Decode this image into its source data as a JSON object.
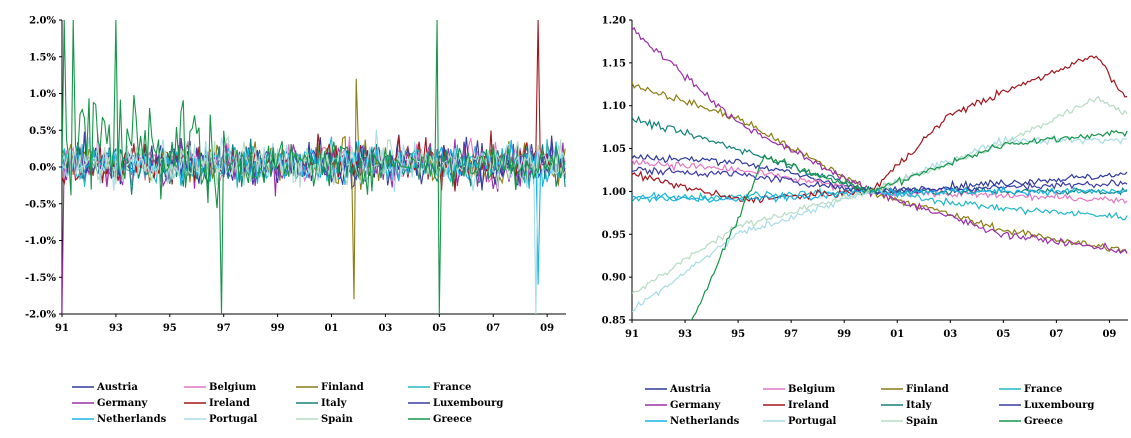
{
  "chart_data": [
    {
      "type": "line",
      "title": "",
      "xlabel": "",
      "ylabel": "",
      "xlim": [
        1991,
        2009.7
      ],
      "ylim": [
        -2.0,
        2.0
      ],
      "y_unit": "%",
      "x_tick_labels": [
        "91",
        "93",
        "95",
        "97",
        "99",
        "01",
        "03",
        "05",
        "07",
        "09"
      ],
      "y_tick_labels": [
        "2.0%",
        "1.5%",
        "1.0%",
        "0.5%",
        "0.0%",
        "-0.5%",
        "-1.0%",
        "-1.5%",
        "-2.0%"
      ],
      "grid": false,
      "legend": "bottom",
      "series": [
        {
          "name": "Austria",
          "color": "#2f3a9c",
          "values": []
        },
        {
          "name": "Belgium",
          "color": "#e377c2",
          "values": []
        },
        {
          "name": "Finland",
          "color": "#8c7d14",
          "values": []
        },
        {
          "name": "France",
          "color": "#20b8c8",
          "values": []
        },
        {
          "name": "Germany",
          "color": "#9b30a8",
          "values": []
        },
        {
          "name": "Ireland",
          "color": "#a3151c",
          "values": []
        },
        {
          "name": "Italy",
          "color": "#12807a",
          "values": []
        },
        {
          "name": "Luxembourg",
          "color": "#3a3aa8",
          "values": []
        },
        {
          "name": "Netherlands",
          "color": "#18b4e6",
          "values": []
        },
        {
          "name": "Portugal",
          "color": "#a8dce8",
          "values": []
        },
        {
          "name": "Spain",
          "color": "#b7dcc4",
          "values": []
        },
        {
          "name": "Greece",
          "color": "#17954a",
          "values": []
        }
      ],
      "spikes": [
        {
          "series": "Greece",
          "x": 1991.1,
          "y": 2.0
        },
        {
          "series": "Greece",
          "x": 1991.4,
          "y": 2.0
        },
        {
          "series": "Greece",
          "x": 1993.0,
          "y": 2.0
        },
        {
          "series": "Greece",
          "x": 1996.9,
          "y": -2.0
        },
        {
          "series": "Greece",
          "x": 2004.9,
          "y": 2.0
        },
        {
          "series": "Greece",
          "x": 2005.0,
          "y": -2.0
        },
        {
          "series": "Finland",
          "x": 2001.9,
          "y": 1.2
        },
        {
          "series": "Finland",
          "x": 2001.8,
          "y": -1.8
        },
        {
          "series": "Ireland",
          "x": 2008.7,
          "y": 2.0
        },
        {
          "series": "Germany",
          "x": 1991.0,
          "y": -2.0
        },
        {
          "series": "Portugal",
          "x": 2008.6,
          "y": -2.0
        },
        {
          "series": "Netherlands",
          "x": 2008.7,
          "y": -1.6
        }
      ]
    },
    {
      "type": "line",
      "title": "",
      "xlabel": "",
      "ylabel": "",
      "xlim": [
        1991,
        2009.7
      ],
      "ylim": [
        0.85,
        1.2
      ],
      "x_tick_labels": [
        "91",
        "93",
        "95",
        "97",
        "99",
        "01",
        "03",
        "05",
        "07",
        "09"
      ],
      "y_tick_labels": [
        "1.20",
        "1.15",
        "1.10",
        "1.05",
        "1.00",
        "0.95",
        "0.90",
        "0.85"
      ],
      "grid": false,
      "legend": "bottom",
      "index_base_year": 2000,
      "series": [
        {
          "name": "Austria",
          "color": "#2f3a9c",
          "x": [
            1991,
            1995,
            2000,
            2005,
            2009.7
          ],
          "values": [
            1.04,
            1.035,
            1.0,
            1.01,
            1.02
          ]
        },
        {
          "name": "Belgium",
          "color": "#e377c2",
          "x": [
            1991,
            1995,
            2000,
            2005,
            2009.7
          ],
          "values": [
            1.035,
            1.025,
            1.0,
            0.995,
            0.99
          ]
        },
        {
          "name": "Finland",
          "color": "#8c7d14",
          "x": [
            1991,
            1995,
            2000,
            2005,
            2009.7
          ],
          "values": [
            1.125,
            1.085,
            1.0,
            0.955,
            0.93
          ]
        },
        {
          "name": "France",
          "color": "#20b8c8",
          "x": [
            1991,
            1995,
            2000,
            2005,
            2009.7
          ],
          "values": [
            0.99,
            0.995,
            1.0,
            0.98,
            0.97
          ]
        },
        {
          "name": "Germany",
          "color": "#9b30a8",
          "x": [
            1991,
            1995,
            2000,
            2005,
            2009.7
          ],
          "values": [
            1.19,
            1.08,
            1.0,
            0.95,
            0.93
          ]
        },
        {
          "name": "Ireland",
          "color": "#a3151c",
          "x": [
            1991,
            1995,
            2000,
            2003,
            2008.5,
            2009.7
          ],
          "values": [
            1.02,
            0.99,
            1.0,
            1.09,
            1.16,
            1.105
          ]
        },
        {
          "name": "Italy",
          "color": "#12807a",
          "x": [
            1991,
            1995,
            2000,
            2005,
            2009.7
          ],
          "values": [
            1.085,
            1.05,
            1.0,
            1.0,
            1.0
          ]
        },
        {
          "name": "Luxembourg",
          "color": "#3a3aa8",
          "x": [
            1991,
            1995,
            2000,
            2005,
            2009.7
          ],
          "values": [
            1.025,
            1.02,
            1.0,
            1.005,
            1.01
          ]
        },
        {
          "name": "Netherlands",
          "color": "#18b4e6",
          "x": [
            1991,
            1995,
            2000,
            2005,
            2009.7
          ],
          "values": [
            0.995,
            0.99,
            1.0,
            1.0,
            1.0
          ]
        },
        {
          "name": "Portugal",
          "color": "#a8dce8",
          "x": [
            1991,
            1995,
            2000,
            2005,
            2009.7
          ],
          "values": [
            0.86,
            0.95,
            1.0,
            1.06,
            1.06
          ]
        },
        {
          "name": "Spain",
          "color": "#b7dcc4",
          "x": [
            1991,
            1995,
            2000,
            2005,
            2008.5,
            2009.7
          ],
          "values": [
            0.88,
            0.96,
            1.0,
            1.055,
            1.11,
            1.09
          ]
        },
        {
          "name": "Greece",
          "color": "#17954a",
          "x": [
            1991,
            1993.3,
            1996,
            2000,
            2005,
            2009.7
          ],
          "values": [
            0.83,
            0.85,
            1.04,
            1.0,
            1.055,
            1.07
          ]
        }
      ]
    }
  ]
}
